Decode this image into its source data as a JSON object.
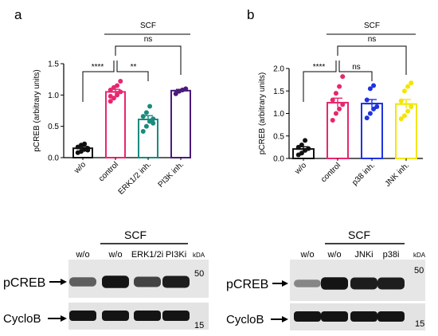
{
  "chart_data": [
    {
      "type": "bar",
      "panel_label": "a",
      "ylabel": "pCREB (arbitrary units)",
      "ylim": [
        0,
        1.5
      ],
      "yticks": [
        "0.0",
        "0.5",
        "1.0",
        "1.5"
      ],
      "categories": [
        "w/o",
        "control",
        "ERK1/2 inh.",
        "PI3K inh."
      ],
      "bar_colors": [
        "#111111",
        "#e8266e",
        "#1b8a7e",
        "#4b1a7a"
      ],
      "means": [
        0.15,
        1.05,
        0.61,
        1.07
      ],
      "sem": [
        0.03,
        0.04,
        0.06,
        0.02
      ],
      "points": [
        [
          0.08,
          0.1,
          0.13,
          0.15,
          0.17,
          0.2,
          0.22,
          0.12
        ],
        [
          0.9,
          0.95,
          1.0,
          1.05,
          1.08,
          1.12,
          1.15,
          1.22,
          0.98
        ],
        [
          0.42,
          0.5,
          0.58,
          0.62,
          0.66,
          0.72,
          0.82,
          0.55
        ],
        [
          1.02,
          1.06,
          1.08,
          1.1
        ]
      ],
      "brackets": [
        {
          "label": "SCF"
        },
        {
          "label": "ns"
        },
        {
          "label": "****"
        },
        {
          "label": "**"
        }
      ]
    },
    {
      "type": "bar",
      "panel_label": "b",
      "ylabel": "pCREB (arbitrary units)",
      "ylim": [
        0,
        2.0
      ],
      "yticks": [
        "0.0",
        "0.5",
        "1.0",
        "1.5",
        "2.0"
      ],
      "categories": [
        "w/o",
        "control",
        "p38 inh.",
        "JNK inh."
      ],
      "bar_colors": [
        "#111111",
        "#e8266e",
        "#1f33e0",
        "#f2e600"
      ],
      "means": [
        0.21,
        1.24,
        1.22,
        1.21
      ],
      "sem": [
        0.05,
        0.1,
        0.09,
        0.1
      ],
      "points": [
        [
          0.08,
          0.12,
          0.18,
          0.22,
          0.25,
          0.3,
          0.4
        ],
        [
          0.85,
          1.0,
          1.1,
          1.2,
          1.3,
          1.45,
          1.6,
          1.82
        ],
        [
          0.9,
          1.0,
          1.1,
          1.15,
          1.3,
          1.55,
          1.62
        ],
        [
          0.88,
          0.95,
          1.05,
          1.15,
          1.28,
          1.5,
          1.6,
          1.68
        ]
      ],
      "brackets": [
        {
          "label": "SCF"
        },
        {
          "label": "ns"
        },
        {
          "label": "****"
        },
        {
          "label": "ns"
        }
      ]
    }
  ],
  "blots": [
    {
      "scf_label": "SCF",
      "lanes": [
        "w/o",
        "w/o",
        "ERK1/2i",
        "PI3Ki"
      ],
      "kda_label": "kDA",
      "marker_top": "50",
      "marker_bottom": "15",
      "row_labels": [
        "pCREB",
        "CycloB"
      ],
      "pcreb_intensity": [
        0.55,
        0.95,
        0.7,
        0.9
      ]
    },
    {
      "scf_label": "SCF",
      "lanes": [
        "w/o",
        "w/o",
        "JNKi",
        "p38i"
      ],
      "kda_label": "kDA",
      "marker_top": "50",
      "marker_bottom": "15",
      "row_labels": [
        "pCREB",
        "CycloB"
      ],
      "pcreb_intensity": [
        0.35,
        0.95,
        0.9,
        0.9
      ]
    }
  ]
}
